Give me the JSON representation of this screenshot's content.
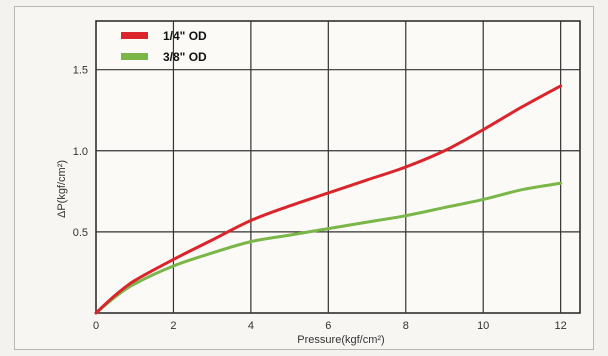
{
  "chart_data": {
    "type": "line",
    "xlabel": "Pressure(kgf/cm²)",
    "ylabel": "ΔP(kgf/cm²)",
    "xlim": [
      0,
      12.5
    ],
    "ylim": [
      0,
      1.8
    ],
    "xticks": [
      0,
      2,
      4,
      6,
      8,
      10,
      12
    ],
    "xtick_labels": [
      "0",
      "2",
      "4",
      "6",
      "8",
      "10",
      "12"
    ],
    "yticks": [
      0.5,
      1.0,
      1.5
    ],
    "ytick_labels": [
      "0.5",
      "1.0",
      "1.5"
    ],
    "grid": true,
    "legend_position": "top-left",
    "series": [
      {
        "name": "1/4\" OD",
        "color": "#d9252b",
        "x": [
          0,
          0.5,
          1,
          2,
          3,
          4,
          5,
          6,
          7,
          8,
          9,
          10,
          11,
          12
        ],
        "y": [
          0,
          0.11,
          0.2,
          0.33,
          0.45,
          0.57,
          0.66,
          0.74,
          0.82,
          0.9,
          1.0,
          1.13,
          1.27,
          1.4
        ]
      },
      {
        "name": "3/8\" OD",
        "color": "#7ab648",
        "x": [
          0,
          0.5,
          1,
          2,
          3,
          4,
          5,
          6,
          7,
          8,
          9,
          10,
          11,
          12
        ],
        "y": [
          0,
          0.1,
          0.18,
          0.29,
          0.37,
          0.44,
          0.48,
          0.52,
          0.56,
          0.6,
          0.65,
          0.7,
          0.76,
          0.8
        ]
      }
    ]
  }
}
